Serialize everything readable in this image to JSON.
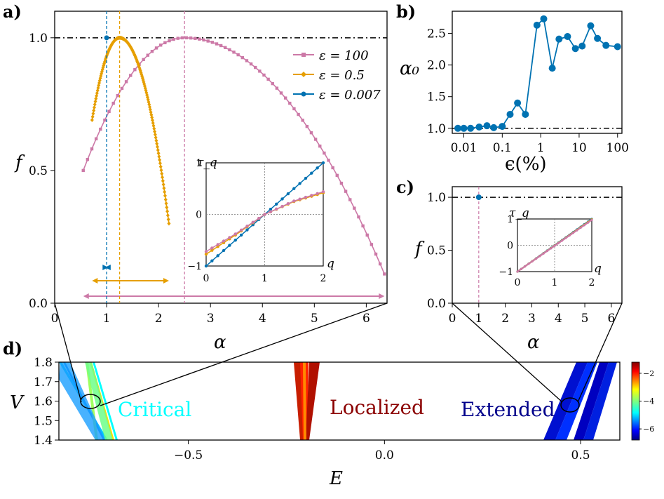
{
  "figure": {
    "panel_a": {
      "label": "a)"
    },
    "panel_b": {
      "label": "b)"
    },
    "panel_c": {
      "label": "c)"
    },
    "panel_d": {
      "label": "d)"
    }
  },
  "chart_data": [
    {
      "panel": "a",
      "type": "line",
      "xlabel": "α",
      "ylabel": "f",
      "xlim": [
        0,
        6.4
      ],
      "ylim": [
        0,
        1.1
      ],
      "xticks": [
        "0",
        "1",
        "2",
        "3",
        "4",
        "5",
        "6"
      ],
      "yticks": [
        "0.0",
        "0.5",
        "1.0"
      ],
      "legend_position": "upper-right",
      "series": [
        {
          "name": "ε = 100",
          "color": "#cc79a7",
          "alpha_min": 0.55,
          "alpha_max": 6.35,
          "alpha_0": 2.5,
          "f_min_left": 0.5,
          "f_min_right": 0.11,
          "range_arrow": [
            0.55,
            6.35
          ]
        },
        {
          "name": "ε = 0.5",
          "color": "#e69f00",
          "alpha_min": 0.72,
          "alpha_max": 2.2,
          "alpha_0": 1.25,
          "f_min_left": 0.69,
          "f_min_right": 0.3,
          "range_arrow": [
            0.72,
            2.2
          ]
        },
        {
          "name": "ε = 0.007",
          "color": "#0072b2",
          "alpha_min": 1.0,
          "alpha_max": 1.0,
          "alpha_0": 1.0,
          "f_value": 1.0,
          "range_arrow": [
            0.97,
            1.03
          ]
        }
      ],
      "reference_line_y": 1.0,
      "inset": {
        "xlabel": "q",
        "ylabel": "τ_q",
        "xlim": [
          0,
          2
        ],
        "ylim": [
          -1,
          1
        ],
        "xticks": [
          "0",
          "1",
          "2"
        ],
        "yticks": [
          "−1",
          "0",
          "1"
        ],
        "series": [
          {
            "name": "ε = 0.007",
            "color": "#0072b2",
            "points": [
              [
                0,
                -1
              ],
              [
                2,
                1
              ]
            ]
          },
          {
            "name": "ε = 0.5",
            "color": "#e69f00",
            "points": [
              [
                0,
                -0.77
              ],
              [
                0.5,
                -0.4
              ],
              [
                1,
                0
              ],
              [
                1.5,
                0.25
              ],
              [
                2,
                0.42
              ]
            ]
          },
          {
            "name": "ε = 100",
            "color": "#cc79a7",
            "points": [
              [
                0,
                -0.72
              ],
              [
                0.5,
                -0.38
              ],
              [
                1,
                0
              ],
              [
                1.5,
                0.26
              ],
              [
                2,
                0.44
              ]
            ]
          }
        ]
      }
    },
    {
      "panel": "b",
      "type": "line",
      "xlabel": "ϵ(%)",
      "ylabel": "α₀",
      "x_scale": "log",
      "xlim": [
        0.005,
        130
      ],
      "ylim": [
        0.92,
        2.85
      ],
      "xticks": [
        "0.01",
        "0.1",
        "1",
        "10",
        "100"
      ],
      "yticks": [
        "1.0",
        "1.5",
        "2.0",
        "2.5"
      ],
      "reference_line_y": 1.0,
      "color": "#0072b2",
      "x": [
        0.007,
        0.01,
        0.015,
        0.025,
        0.04,
        0.06,
        0.1,
        0.16,
        0.25,
        0.4,
        0.8,
        1.2,
        2,
        3,
        5,
        8,
        12,
        20,
        30,
        50,
        100
      ],
      "y": [
        1.0,
        1.0,
        1.0,
        1.02,
        1.04,
        1.01,
        1.03,
        1.22,
        1.4,
        1.22,
        2.63,
        2.73,
        1.95,
        2.41,
        2.45,
        2.26,
        2.3,
        2.62,
        2.42,
        2.31,
        2.29
      ]
    },
    {
      "panel": "c",
      "type": "scatter",
      "xlabel": "α",
      "ylabel": "f",
      "xlim": [
        0,
        6.4
      ],
      "ylim": [
        0,
        1.1
      ],
      "xticks": [
        "0",
        "1",
        "2",
        "3",
        "4",
        "5",
        "6"
      ],
      "yticks": [
        "0.0",
        "0.5",
        "1.0"
      ],
      "reference_line_y": 1.0,
      "points": [
        {
          "x": 1.0,
          "y": 1.0,
          "color": "#0072b2"
        }
      ],
      "inset": {
        "xlabel": "q",
        "ylabel": "τ_q",
        "xlim": [
          0,
          2
        ],
        "ylim": [
          -1,
          1
        ],
        "xticks": [
          "0",
          "1",
          "2"
        ],
        "yticks": [
          "−1",
          "0",
          "1"
        ],
        "series": [
          {
            "name": "ε = 0.007",
            "color": "#0072b2",
            "points": [
              [
                0,
                -1
              ],
              [
                2,
                1
              ]
            ]
          },
          {
            "name": "ε = 0.5",
            "color": "#e69f00",
            "points": [
              [
                0,
                -1
              ],
              [
                2,
                0.98
              ]
            ]
          },
          {
            "name": "ε = 100",
            "color": "#cc79a7",
            "points": [
              [
                0,
                -1
              ],
              [
                2,
                0.96
              ]
            ]
          }
        ]
      }
    },
    {
      "panel": "d",
      "type": "heatmap",
      "xlabel": "E",
      "ylabel": "V",
      "xlim": [
        -0.83,
        0.6
      ],
      "ylim": [
        1.4,
        1.8
      ],
      "xticks": [
        "−0.5",
        "0.0",
        "0.5"
      ],
      "yticks": [
        "1.4",
        "1.5",
        "1.6",
        "1.7",
        "1.8"
      ],
      "colorbar": {
        "ticks": [
          "−2",
          "−4",
          "−6"
        ],
        "range": [
          -6.8,
          -1.2
        ],
        "colormap": "jet"
      },
      "regions": [
        {
          "label": "Critical",
          "color": "#00ffff"
        },
        {
          "label": "Localized",
          "color": "#8b0000"
        },
        {
          "label": "Extended",
          "color": "#00008b"
        }
      ]
    }
  ]
}
